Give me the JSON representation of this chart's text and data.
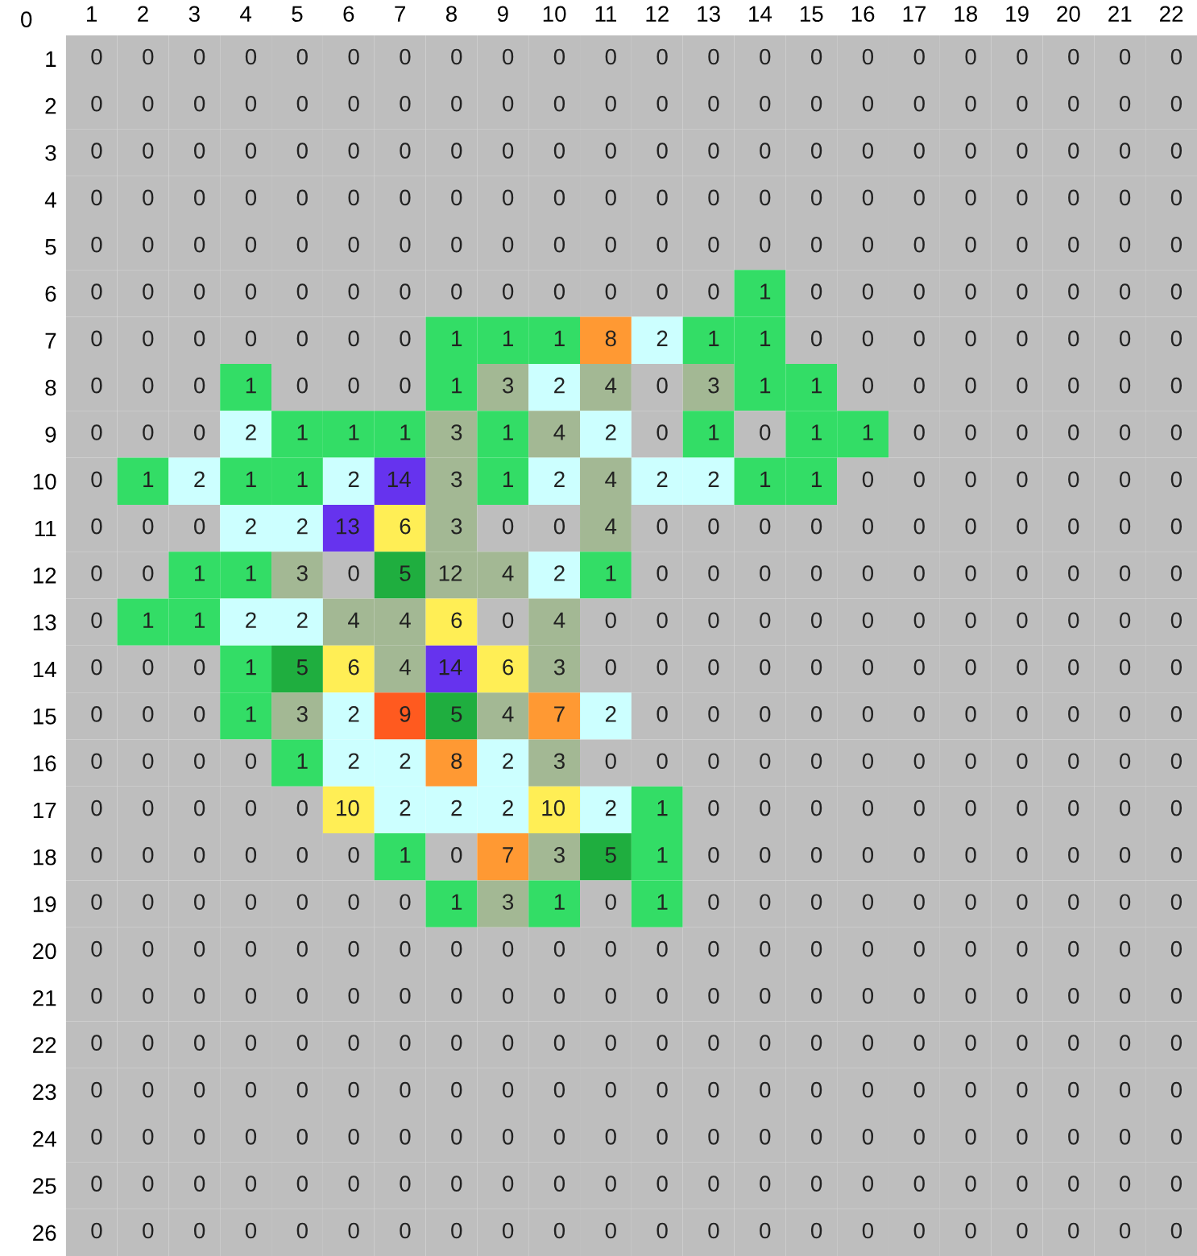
{
  "chart_data": {
    "type": "heatmap",
    "categories": [
      "1",
      "2",
      "3",
      "4",
      "5",
      "6",
      "7",
      "8",
      "9",
      "10",
      "11",
      "12",
      "13",
      "14",
      "15",
      "16",
      "17",
      "18",
      "19",
      "20",
      "21",
      "22"
    ],
    "y_categories": [
      "1",
      "2",
      "3",
      "4",
      "5",
      "6",
      "7",
      "8",
      "9",
      "10",
      "11",
      "12",
      "13",
      "14",
      "15",
      "16",
      "17",
      "18",
      "19",
      "20",
      "21",
      "22",
      "23",
      "24",
      "25",
      "26"
    ],
    "colors": [
      "#bebebe",
      "#33dd66",
      "#ccffff",
      "#a3b894",
      "#a3b894",
      "#1fae3f",
      "#ffee55",
      "#ff9933",
      "#ff9933",
      "#ff5a1f",
      "#ffee55",
      "#a3b894",
      "#a3b894",
      "#6633ee",
      "#6633ee"
    ],
    "annotations": [
      "0"
    ],
    "data_labels": true,
    "grid": false,
    "cells": [
      [
        0,
        0,
        0,
        0,
        0,
        0,
        0,
        0,
        0,
        0,
        0,
        0,
        0,
        0,
        0,
        0,
        0,
        0,
        0,
        0,
        0,
        0
      ],
      [
        0,
        0,
        0,
        0,
        0,
        0,
        0,
        0,
        0,
        0,
        0,
        0,
        0,
        0,
        0,
        0,
        0,
        0,
        0,
        0,
        0,
        0
      ],
      [
        0,
        0,
        0,
        0,
        0,
        0,
        0,
        0,
        0,
        0,
        0,
        0,
        0,
        0,
        0,
        0,
        0,
        0,
        0,
        0,
        0,
        0
      ],
      [
        0,
        0,
        0,
        0,
        0,
        0,
        0,
        0,
        0,
        0,
        0,
        0,
        0,
        0,
        0,
        0,
        0,
        0,
        0,
        0,
        0,
        0
      ],
      [
        0,
        0,
        0,
        0,
        0,
        0,
        0,
        0,
        0,
        0,
        0,
        0,
        0,
        0,
        0,
        0,
        0,
        0,
        0,
        0,
        0,
        0
      ],
      [
        0,
        0,
        0,
        0,
        0,
        0,
        0,
        0,
        0,
        0,
        0,
        0,
        0,
        1,
        0,
        0,
        0,
        0,
        0,
        0,
        0,
        0
      ],
      [
        0,
        0,
        0,
        0,
        0,
        0,
        0,
        1,
        1,
        1,
        8,
        2,
        1,
        1,
        0,
        0,
        0,
        0,
        0,
        0,
        0,
        0
      ],
      [
        0,
        0,
        0,
        1,
        0,
        0,
        0,
        1,
        3,
        2,
        4,
        0,
        3,
        1,
        1,
        0,
        0,
        0,
        0,
        0,
        0,
        0
      ],
      [
        0,
        0,
        0,
        2,
        1,
        1,
        1,
        3,
        1,
        4,
        2,
        0,
        1,
        0,
        1,
        1,
        0,
        0,
        0,
        0,
        0,
        0
      ],
      [
        0,
        1,
        2,
        1,
        1,
        2,
        14,
        3,
        1,
        2,
        4,
        2,
        2,
        1,
        1,
        0,
        0,
        0,
        0,
        0,
        0,
        0
      ],
      [
        0,
        0,
        0,
        2,
        2,
        13,
        6,
        3,
        0,
        0,
        4,
        0,
        0,
        0,
        0,
        0,
        0,
        0,
        0,
        0,
        0,
        0
      ],
      [
        0,
        0,
        1,
        1,
        3,
        0,
        5,
        12,
        4,
        2,
        1,
        0,
        0,
        0,
        0,
        0,
        0,
        0,
        0,
        0,
        0,
        0
      ],
      [
        0,
        1,
        1,
        2,
        2,
        4,
        4,
        6,
        0,
        4,
        0,
        0,
        0,
        0,
        0,
        0,
        0,
        0,
        0,
        0,
        0,
        0
      ],
      [
        0,
        0,
        0,
        1,
        5,
        6,
        4,
        14,
        6,
        3,
        0,
        0,
        0,
        0,
        0,
        0,
        0,
        0,
        0,
        0,
        0,
        0
      ],
      [
        0,
        0,
        0,
        1,
        3,
        2,
        9,
        5,
        4,
        7,
        2,
        0,
        0,
        0,
        0,
        0,
        0,
        0,
        0,
        0,
        0,
        0
      ],
      [
        0,
        0,
        0,
        0,
        1,
        2,
        2,
        8,
        2,
        3,
        0,
        0,
        0,
        0,
        0,
        0,
        0,
        0,
        0,
        0,
        0,
        0
      ],
      [
        0,
        0,
        0,
        0,
        0,
        10,
        2,
        2,
        2,
        10,
        2,
        1,
        0,
        0,
        0,
        0,
        0,
        0,
        0,
        0,
        0,
        0
      ],
      [
        0,
        0,
        0,
        0,
        0,
        0,
        1,
        0,
        7,
        3,
        5,
        1,
        0,
        0,
        0,
        0,
        0,
        0,
        0,
        0,
        0,
        0
      ],
      [
        0,
        0,
        0,
        0,
        0,
        0,
        0,
        1,
        3,
        1,
        0,
        1,
        0,
        0,
        0,
        0,
        0,
        0,
        0,
        0,
        0,
        0
      ],
      [
        0,
        0,
        0,
        0,
        0,
        0,
        0,
        0,
        0,
        0,
        0,
        0,
        0,
        0,
        0,
        0,
        0,
        0,
        0,
        0,
        0,
        0
      ],
      [
        0,
        0,
        0,
        0,
        0,
        0,
        0,
        0,
        0,
        0,
        0,
        0,
        0,
        0,
        0,
        0,
        0,
        0,
        0,
        0,
        0,
        0
      ],
      [
        0,
        0,
        0,
        0,
        0,
        0,
        0,
        0,
        0,
        0,
        0,
        0,
        0,
        0,
        0,
        0,
        0,
        0,
        0,
        0,
        0,
        0
      ],
      [
        0,
        0,
        0,
        0,
        0,
        0,
        0,
        0,
        0,
        0,
        0,
        0,
        0,
        0,
        0,
        0,
        0,
        0,
        0,
        0,
        0,
        0
      ],
      [
        0,
        0,
        0,
        0,
        0,
        0,
        0,
        0,
        0,
        0,
        0,
        0,
        0,
        0,
        0,
        0,
        0,
        0,
        0,
        0,
        0,
        0
      ],
      [
        0,
        0,
        0,
        0,
        0,
        0,
        0,
        0,
        0,
        0,
        0,
        0,
        0,
        0,
        0,
        0,
        0,
        0,
        0,
        0,
        0,
        0
      ],
      [
        0,
        0,
        0,
        0,
        0,
        0,
        0,
        0,
        0,
        0,
        0,
        0,
        0,
        0,
        0,
        0,
        0,
        0,
        0,
        0,
        0,
        0
      ]
    ]
  }
}
